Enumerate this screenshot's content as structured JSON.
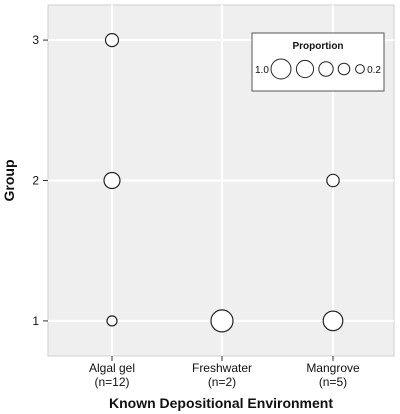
{
  "chart_data": {
    "type": "scatter",
    "title": "",
    "xlabel": "Known Depositional Environment",
    "ylabel": "Group",
    "categories": [
      {
        "name": "Algal gel",
        "n": "(n=12)"
      },
      {
        "name": "Freshwater",
        "n": "(n=2)"
      },
      {
        "name": "Mangrove",
        "n": "(n=5)"
      }
    ],
    "yticks": [
      "1",
      "2",
      "3"
    ],
    "ylim": [
      0.75,
      3.25
    ],
    "grid": true,
    "points": [
      {
        "x": "Algal gel",
        "y": 1,
        "proportion": 0.0
      },
      {
        "x": "Algal gel",
        "y": 2,
        "proportion": 0.5
      },
      {
        "x": "Algal gel",
        "y": 3,
        "proportion": 0.25
      },
      {
        "x": "Freshwater",
        "y": 1,
        "proportion": 1.0
      },
      {
        "x": "Mangrove",
        "y": 1,
        "proportion": 0.8
      },
      {
        "x": "Mangrove",
        "y": 2,
        "proportion": 0.2
      }
    ],
    "legend": {
      "title": "Proportion",
      "placement": "top-right",
      "max_label": "1.0",
      "min_label": "0.2",
      "values": [
        1.0,
        0.8,
        0.6,
        0.4,
        0.2
      ]
    },
    "colors": {
      "panel": "#efefef",
      "grid": "#ffffff",
      "marker_stroke": "#222222",
      "marker_fill": "#ffffff"
    }
  }
}
